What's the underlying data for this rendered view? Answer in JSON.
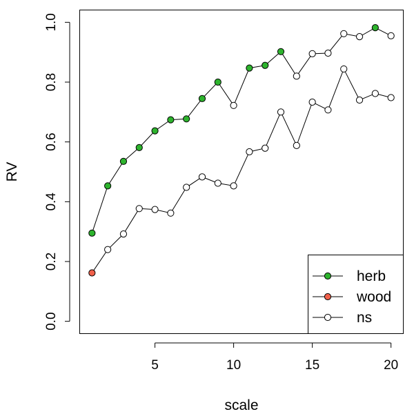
{
  "chart_data": {
    "type": "scatter",
    "title": "",
    "xlabel": "scale",
    "ylabel": "RV",
    "xlim": [
      0.24,
      20.76
    ],
    "ylim": [
      -0.04,
      1.04
    ],
    "xticks": [
      5,
      10,
      15,
      20
    ],
    "yticks": [
      0.0,
      0.2,
      0.4,
      0.6,
      0.8,
      1.0
    ],
    "ytick_labels": [
      "0.0",
      "0.2",
      "0.4",
      "0.6",
      "0.8",
      "1.0"
    ],
    "grid": false,
    "legend_position": "bottom-right",
    "categories": {
      "herb": "#2db32d",
      "wood": "#f0604a",
      "ns": "#ffffff"
    },
    "legend": [
      {
        "label": "herb",
        "color": "#2db32d"
      },
      {
        "label": "wood",
        "color": "#f0604a"
      },
      {
        "label": "ns",
        "color": "#ffffff"
      }
    ],
    "series": [
      {
        "x": [
          1,
          2,
          3,
          4,
          5,
          6,
          7,
          8,
          9,
          10,
          11,
          12,
          13,
          14,
          15,
          16,
          17,
          18,
          19,
          20
        ],
        "y": [
          0.295,
          0.453,
          0.535,
          0.581,
          0.637,
          0.674,
          0.677,
          0.745,
          0.8,
          0.722,
          0.847,
          0.856,
          0.902,
          0.82,
          0.895,
          0.897,
          0.962,
          0.952,
          0.982,
          0.955
        ],
        "point_category": [
          "herb",
          "herb",
          "herb",
          "herb",
          "herb",
          "herb",
          "herb",
          "herb",
          "herb",
          "ns",
          "herb",
          "herb",
          "herb",
          "ns",
          "ns",
          "ns",
          "ns",
          "ns",
          "herb",
          "ns"
        ]
      },
      {
        "x": [
          1,
          2,
          3,
          4,
          5,
          6,
          7,
          8,
          9,
          10,
          11,
          12,
          13,
          14,
          15,
          16,
          17,
          18,
          19,
          20
        ],
        "y": [
          0.162,
          0.24,
          0.292,
          0.377,
          0.374,
          0.362,
          0.448,
          0.483,
          0.462,
          0.453,
          0.567,
          0.579,
          0.7,
          0.588,
          0.733,
          0.707,
          0.844,
          0.74,
          0.762,
          0.748
        ],
        "point_category": [
          "wood",
          "ns",
          "ns",
          "ns",
          "ns",
          "ns",
          "ns",
          "ns",
          "ns",
          "ns",
          "ns",
          "ns",
          "ns",
          "ns",
          "ns",
          "ns",
          "ns",
          "ns",
          "ns",
          "ns"
        ]
      }
    ]
  }
}
